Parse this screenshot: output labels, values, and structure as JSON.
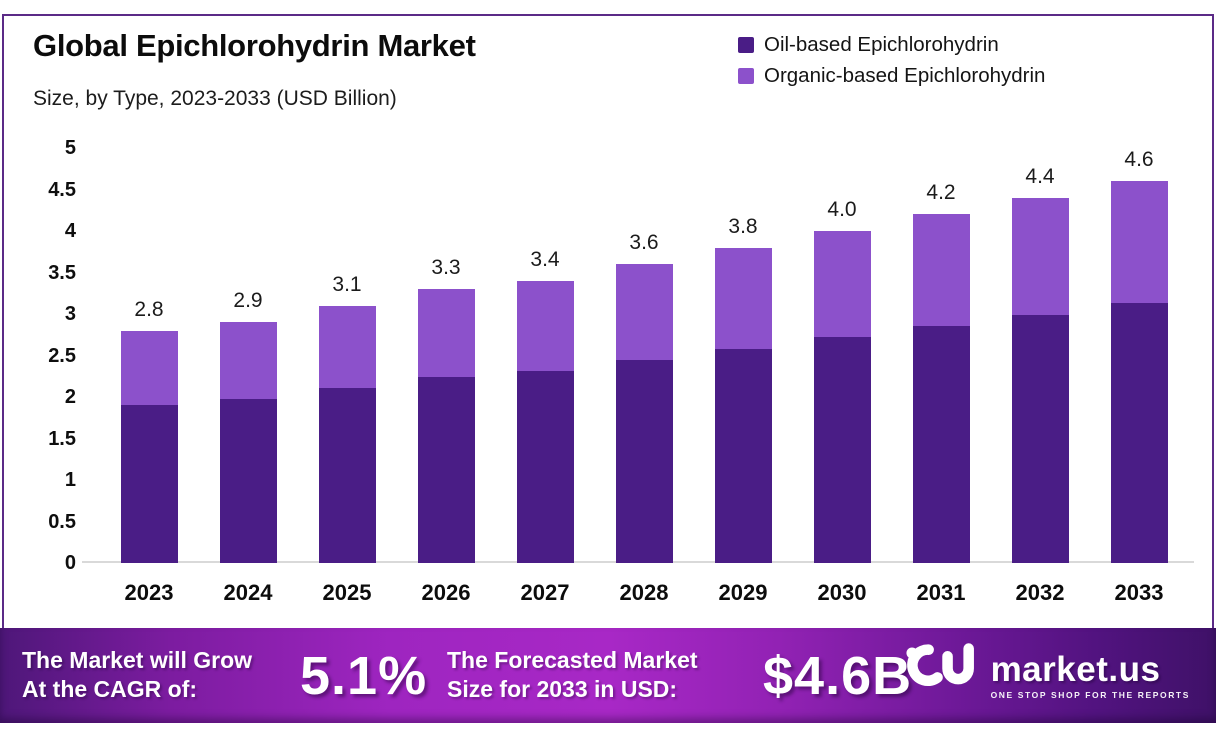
{
  "header": {
    "title": "Global Epichlorohydrin Market",
    "subtitle": "Size, by Type, 2023-2033 (USD Billion)"
  },
  "colors": {
    "oil_based": "#4a1d86",
    "organic_based": "#8c51cb",
    "frame_border": "#5b2a87",
    "banner_gradient": [
      "#4e1779",
      "#a828c6",
      "#3f1168"
    ]
  },
  "chart_data": {
    "type": "bar",
    "stacked": true,
    "title": "Global Epichlorohydrin Market Size, by Type, 2023-2033 (USD Billion)",
    "categories": [
      "2023",
      "2024",
      "2025",
      "2026",
      "2027",
      "2028",
      "2029",
      "2030",
      "2031",
      "2032",
      "2033"
    ],
    "series": [
      {
        "name": "Oil-based Epichlorohydrin",
        "color": "#4a1d86",
        "values": [
          1.9,
          1.97,
          2.11,
          2.24,
          2.31,
          2.45,
          2.58,
          2.72,
          2.86,
          2.99,
          3.13
        ]
      },
      {
        "name": "Organic-based Epichlorohydrin",
        "color": "#8c51cb",
        "values": [
          0.9,
          0.93,
          0.99,
          1.06,
          1.09,
          1.15,
          1.22,
          1.28,
          1.34,
          1.41,
          1.47
        ]
      }
    ],
    "totals": [
      2.8,
      2.9,
      3.1,
      3.3,
      3.4,
      3.6,
      3.8,
      4.0,
      4.2,
      4.4,
      4.6
    ],
    "total_labels": [
      "2.8",
      "2.9",
      "3.1",
      "3.3",
      "3.4",
      "3.6",
      "3.8",
      "4.0",
      "4.2",
      "4.4",
      "4.6"
    ],
    "ytick_labels": [
      "5",
      "4.5",
      "4",
      "3.5",
      "3",
      "2.5",
      "2",
      "1.5",
      "1",
      "0.5",
      "0"
    ],
    "ylim": [
      0,
      5
    ],
    "grid": false,
    "legend_position": "top-right",
    "xlabel": "",
    "ylabel": ""
  },
  "banner": {
    "cagr_label_line1": "The Market will Grow",
    "cagr_label_line2": "At the CAGR of:",
    "cagr_value": "5.1%",
    "forecast_label_line1": "The Forecasted Market",
    "forecast_label_line2": "Size for 2033 in USD:",
    "forecast_value": "$4.6B",
    "logo_text": "market.us",
    "logo_tagline": "ONE STOP SHOP FOR THE REPORTS"
  }
}
